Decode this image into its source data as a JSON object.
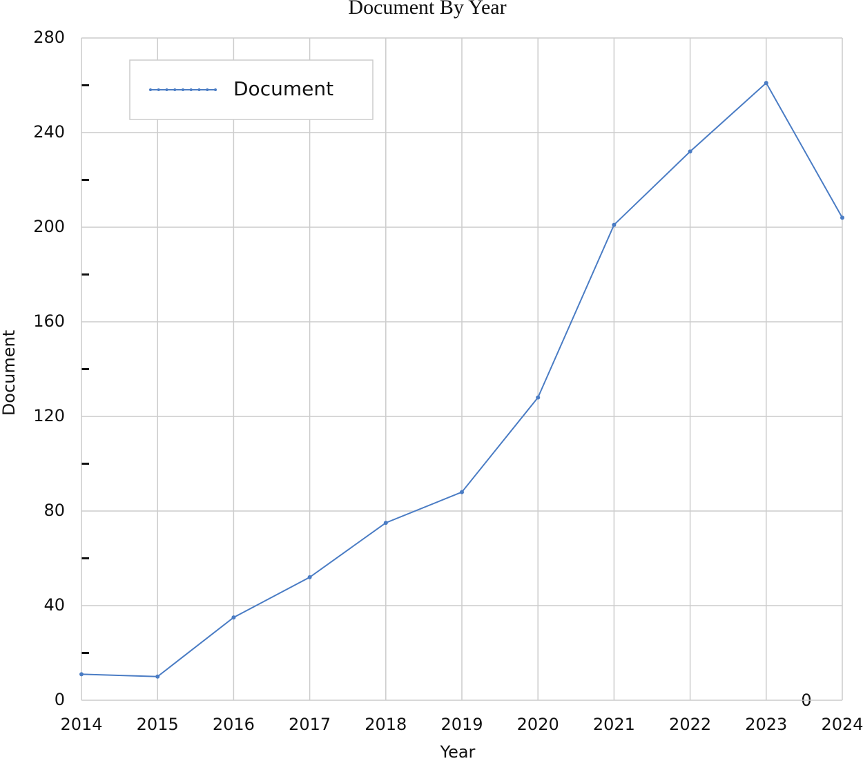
{
  "chart_data": {
    "type": "line",
    "title": "Document By Year",
    "x_label": "Year",
    "y_label": "Document",
    "x": [
      2014,
      2015,
      2016,
      2017,
      2018,
      2019,
      2020,
      2021,
      2022,
      2023,
      2024
    ],
    "series": [
      {
        "name": "Document",
        "color": "#4a7cc4",
        "values": [
          11,
          10,
          35,
          52,
          75,
          88,
          128,
          201,
          232,
          261,
          204
        ]
      }
    ],
    "xlim": [
      2014,
      2024
    ],
    "xticks": [
      2014,
      2015,
      2016,
      2017,
      2018,
      2019,
      2020,
      2021,
      2022,
      2023,
      2024
    ],
    "ylim": [
      0,
      280
    ],
    "yticks": [
      0,
      40,
      80,
      120,
      160,
      200,
      240,
      280
    ],
    "yminorticks": [
      20,
      60,
      100,
      140,
      180,
      220,
      260
    ],
    "annotation": "0",
    "grid": true,
    "legend": "upper left"
  }
}
